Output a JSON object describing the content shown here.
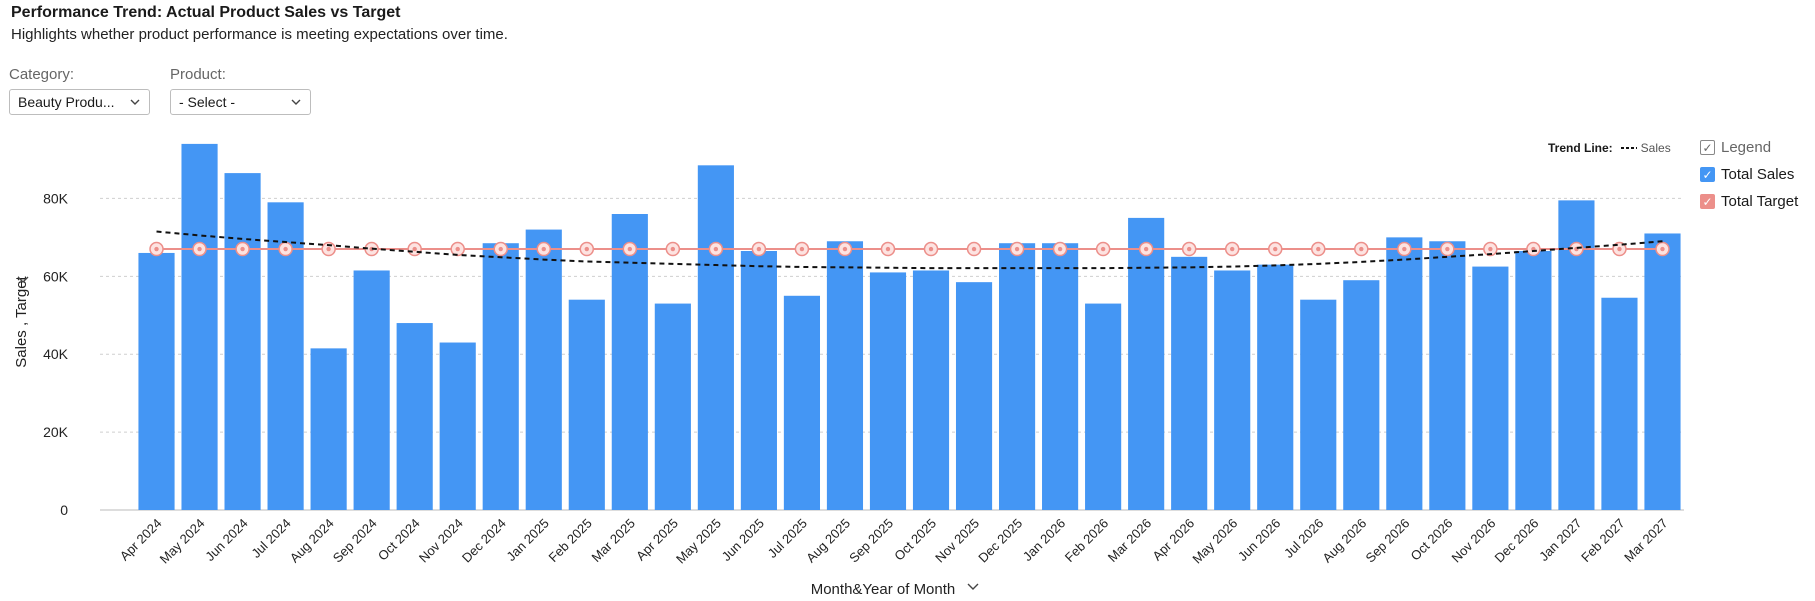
{
  "header": {
    "title": "Performance Trend: Actual Product Sales vs Target",
    "subtitle": "Highlights whether product performance is meeting expectations over time."
  },
  "filters": {
    "category_label": "Category:",
    "category_value": "Beauty Produ...",
    "product_label": "Product:",
    "product_value": "- Select -"
  },
  "legend": {
    "title": "Legend",
    "items": [
      {
        "label": "Total Sales",
        "color": "#4496f4"
      },
      {
        "label": "Total Target",
        "color": "#ec8f8a"
      }
    ],
    "trend_label": "Trend Line:",
    "trend_series": "Sales"
  },
  "chart_data": {
    "type": "bar",
    "xlabel": "Month&Year of Month",
    "ylabel": "Sales , Target",
    "ylim": [
      0,
      95000
    ],
    "yticks": [
      0,
      20000,
      40000,
      60000,
      80000
    ],
    "ytick_labels": [
      "0",
      "20K",
      "40K",
      "60K",
      "80K"
    ],
    "grid": true,
    "legend_position": "top-right",
    "categories": [
      "Apr 2024",
      "May 2024",
      "Jun 2024",
      "Jul 2024",
      "Aug 2024",
      "Sep 2024",
      "Oct 2024",
      "Nov 2024",
      "Dec 2024",
      "Jan 2025",
      "Feb 2025",
      "Mar 2025",
      "Apr 2025",
      "May 2025",
      "Jun 2025",
      "Jul 2025",
      "Aug 2025",
      "Sep 2025",
      "Oct 2025",
      "Nov 2025",
      "Dec 2025",
      "Jan 2026",
      "Feb 2026",
      "Mar 2026",
      "Apr 2026",
      "May 2026",
      "Jun 2026",
      "Jul 2026",
      "Aug 2026",
      "Sep 2026",
      "Oct 2026",
      "Nov 2026",
      "Dec 2026",
      "Jan 2027",
      "Feb 2027",
      "Mar 2027"
    ],
    "series": [
      {
        "name": "Total Sales",
        "type": "bar",
        "color": "#4496f4",
        "values": [
          66000,
          94000,
          86500,
          79000,
          41500,
          61500,
          48000,
          43000,
          68500,
          72000,
          54000,
          76000,
          53000,
          88500,
          66500,
          55000,
          69000,
          61000,
          61500,
          58500,
          68500,
          68500,
          53000,
          75000,
          65000,
          61500,
          63000,
          54000,
          59000,
          70000,
          69000,
          62500,
          66500,
          79500,
          54500,
          71000
        ]
      },
      {
        "name": "Total Target",
        "type": "line",
        "color": "#ec8f8a",
        "values": [
          67000,
          67000,
          67000,
          67000,
          67000,
          67000,
          67000,
          67000,
          67000,
          67000,
          67000,
          67000,
          67000,
          67000,
          67000,
          67000,
          67000,
          67000,
          67000,
          67000,
          67000,
          67000,
          67000,
          67000,
          67000,
          67000,
          67000,
          67000,
          67000,
          67000,
          67000,
          67000,
          67000,
          67000,
          67000,
          67000
        ]
      },
      {
        "name": "Sales",
        "type": "trend",
        "color": "#111111",
        "values": [
          71500,
          70500,
          69600,
          68800,
          68000,
          67100,
          66300,
          65500,
          64900,
          64300,
          63800,
          63500,
          63200,
          62900,
          62600,
          62400,
          62300,
          62200,
          62100,
          62100,
          62100,
          62100,
          62100,
          62200,
          62300,
          62500,
          62800,
          63200,
          63700,
          64300,
          65000,
          65700,
          66500,
          67300,
          68100,
          69000
        ]
      }
    ]
  }
}
